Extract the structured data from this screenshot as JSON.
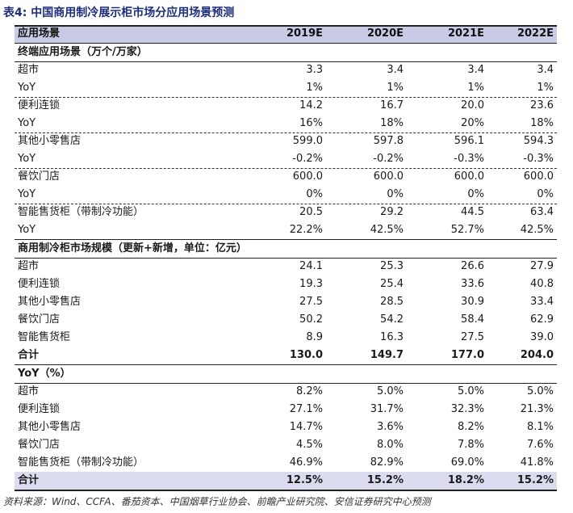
{
  "title": {
    "prefix": "表4:",
    "text": "中国商用制冷展示柜市场分应用场景预测"
  },
  "header": {
    "label": "应用场景",
    "years": [
      "2019E",
      "2020E",
      "2021E",
      "2022E"
    ]
  },
  "section1": {
    "title": "终端应用场景（万个/万家）",
    "rows": [
      {
        "label": "超市",
        "values": [
          "3.3",
          "3.4",
          "3.4",
          "3.4"
        ]
      },
      {
        "label": "YoY",
        "values": [
          "1%",
          "1%",
          "1%",
          "1%"
        ]
      },
      {
        "label": "便利连锁",
        "values": [
          "14.2",
          "16.7",
          "20.0",
          "23.6"
        ]
      },
      {
        "label": "YoY",
        "values": [
          "16%",
          "18%",
          "20%",
          "18%"
        ]
      },
      {
        "label": "其他小零售店",
        "values": [
          "599.0",
          "597.8",
          "596.1",
          "594.3"
        ]
      },
      {
        "label": "YoY",
        "values": [
          "-0.2%",
          "-0.2%",
          "-0.3%",
          "-0.3%"
        ]
      },
      {
        "label": "餐饮门店",
        "values": [
          "600.0",
          "600.0",
          "600.0",
          "600.0"
        ]
      },
      {
        "label": "YoY",
        "values": [
          "0%",
          "0%",
          "0%",
          "0%"
        ]
      },
      {
        "label": "智能售货柜（带制冷功能）",
        "values": [
          "20.5",
          "29.2",
          "44.5",
          "63.4"
        ]
      },
      {
        "label": "YoY",
        "values": [
          "22.2%",
          "42.5%",
          "52.7%",
          "42.5%"
        ]
      }
    ]
  },
  "section2": {
    "title": "商用制冷柜市场规模（更新+新增，单位：亿元）",
    "rows": [
      {
        "label": "超市",
        "values": [
          "24.1",
          "25.3",
          "26.6",
          "27.9"
        ]
      },
      {
        "label": "便利连锁",
        "values": [
          "19.3",
          "25.4",
          "33.6",
          "40.8"
        ]
      },
      {
        "label": "其他小零售店",
        "values": [
          "27.5",
          "28.5",
          "30.9",
          "33.4"
        ]
      },
      {
        "label": "餐饮门店",
        "values": [
          "50.2",
          "54.2",
          "58.4",
          "62.9"
        ]
      },
      {
        "label": "智能售货柜",
        "values": [
          "8.9",
          "16.3",
          "27.5",
          "39.0"
        ]
      },
      {
        "label": "合计",
        "values": [
          "130.0",
          "149.7",
          "177.0",
          "204.0"
        ]
      }
    ]
  },
  "section3": {
    "title": "YoY（%）",
    "rows": [
      {
        "label": "超市",
        "values": [
          "8.2%",
          "5.0%",
          "5.0%",
          "5.0%"
        ]
      },
      {
        "label": "便利连锁",
        "values": [
          "27.1%",
          "31.7%",
          "32.3%",
          "21.3%"
        ]
      },
      {
        "label": "其他小零售店",
        "values": [
          "14.7%",
          "3.6%",
          "8.2%",
          "8.1%"
        ]
      },
      {
        "label": "餐饮门店",
        "values": [
          "4.5%",
          "8.0%",
          "7.8%",
          "7.6%"
        ]
      },
      {
        "label": "智能售货柜（带制冷功能）",
        "values": [
          "46.9%",
          "82.9%",
          "69.0%",
          "41.8%"
        ]
      },
      {
        "label": "合计",
        "values": [
          "12.5%",
          "15.2%",
          "18.2%",
          "15.2%"
        ]
      }
    ]
  },
  "footer": "资料来源：Wind、CCFA、番茄资本、中国烟草行业协会、前瞻产业研究院、安信证券研究中心预测"
}
